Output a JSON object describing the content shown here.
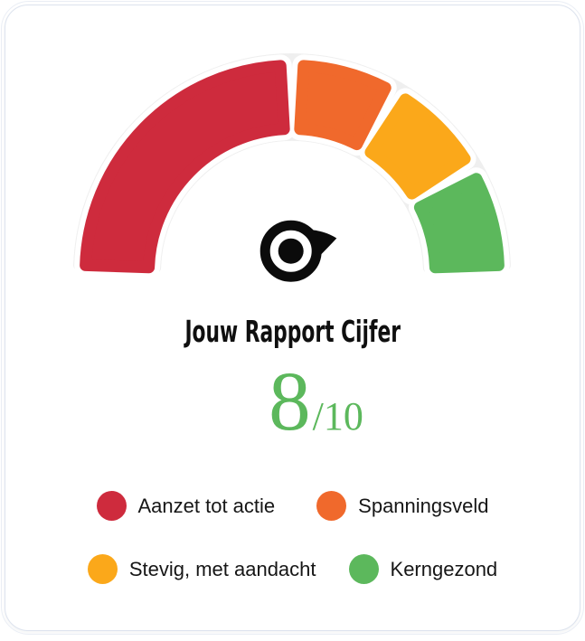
{
  "card": {
    "title": "Jouw Rapport Cijfer",
    "score_value": "8",
    "score_suffix": "/10"
  },
  "chart_data": {
    "type": "gauge",
    "title": "Jouw Rapport Cijfer",
    "min": 0,
    "max": 10,
    "value": 8,
    "value_label": "8/10",
    "angle_span_deg": 180,
    "track_color": "#EFEFEF",
    "segment_outline_color": "#FFFFFF",
    "needle_color": "#0B0B0B",
    "score_color": "#5CB85C",
    "segments": [
      {
        "label": "Aanzet tot actie",
        "color": "#CE2B3D",
        "from": 0,
        "to": 5
      },
      {
        "label": "Spanningsveld",
        "color": "#F0692C",
        "from": 5,
        "to": 6.67
      },
      {
        "label": "Stevig, met aandacht",
        "color": "#FBA81A",
        "from": 6.67,
        "to": 8.33
      },
      {
        "label": "Kerngezond",
        "color": "#5CB85C",
        "from": 8.33,
        "to": 10
      }
    ],
    "legend_position": "bottom",
    "legend_rows": [
      [
        "Aanzet tot actie",
        "Spanningsveld"
      ],
      [
        "Stevig, met aandacht",
        "Kerngezond"
      ]
    ]
  }
}
